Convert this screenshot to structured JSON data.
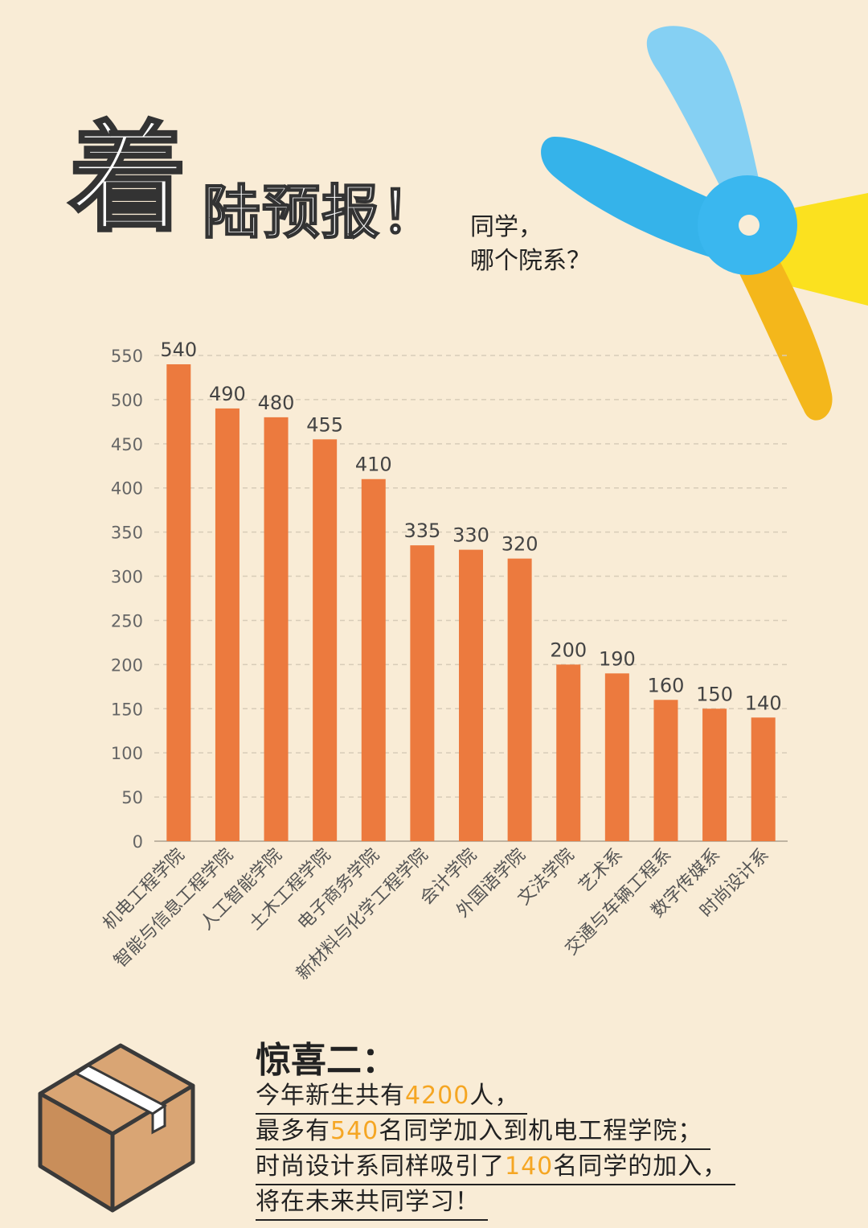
{
  "header": {
    "title_big": "着",
    "title_rest": "陆预报！",
    "subtitle_line1": "同学，",
    "subtitle_line2": "哪个院系？"
  },
  "chart_data": {
    "type": "bar",
    "categories": [
      "机电工程学院",
      "智能与信息工程学院",
      "人工智能学院",
      "土木工程学院",
      "电子商务学院",
      "新材料与化学工程学院",
      "会计学院",
      "外国语学院",
      "文法学院",
      "艺术系",
      "交通与车辆工程系",
      "数字传媒系",
      "时尚设计系"
    ],
    "values": [
      540,
      490,
      480,
      455,
      410,
      335,
      330,
      320,
      200,
      190,
      160,
      150,
      140
    ],
    "ylim": [
      0,
      550
    ],
    "yticks": [
      0,
      50,
      100,
      150,
      200,
      250,
      300,
      350,
      400,
      450,
      500,
      550
    ],
    "grid": true,
    "bar_color": "#ec7a3e"
  },
  "surprise": {
    "title": "惊喜二：",
    "line1": {
      "a": "今年新生共有",
      "h": "4200",
      "b": "人，"
    },
    "line2": {
      "a": "最多有",
      "h": "540",
      "b": "名同学加入到机电工程学院；"
    },
    "line3": {
      "a": "时尚设计系同样吸引了",
      "h": "140",
      "b": "名同学的加入，"
    },
    "line4": {
      "a": "将在未来共同学习！"
    }
  },
  "colors": {
    "highlight": "#f5a623",
    "background": "#f9ecd6"
  },
  "icons": [
    "scissors-icon",
    "package-box-icon"
  ]
}
